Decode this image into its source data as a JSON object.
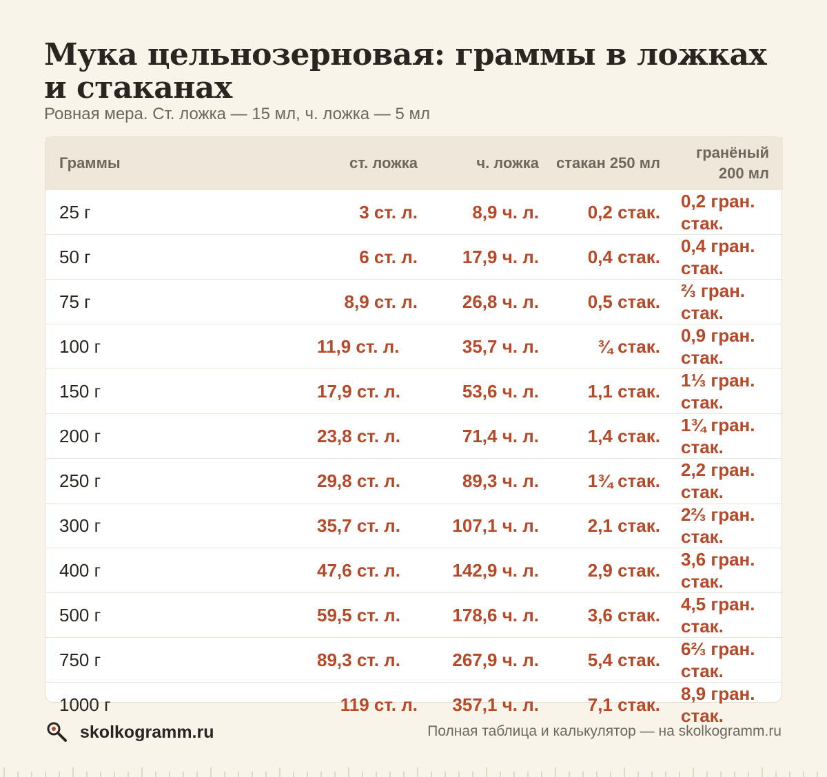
{
  "title": "Мука цельнозерновая: граммы в ложках и стаканах",
  "subtitle": "Ровная мера. Ст. ложка — 15 мл, ч. ложка — 5 мл",
  "table": {
    "headers": [
      "Граммы",
      "ст. ложка",
      "ч. ложка",
      "стакан 250 мл",
      "гранёный 200 мл"
    ],
    "rows": [
      [
        "25 г",
        "3 ст. л.",
        "8,9 ч. л.",
        "0,2 стак.",
        "0,2 гран. стак."
      ],
      [
        "50 г",
        "6 ст. л.",
        "17,9 ч. л.",
        "0,4 стак.",
        "0,4 гран. стак."
      ],
      [
        "75 г",
        "8,9 ст. л.",
        "26,8 ч. л.",
        "0,5 стак.",
        "⅔ гран. стак."
      ],
      [
        "100 г",
        "11,9 ст. л.",
        "35,7 ч. л.",
        "¾ стак.",
        "0,9 гран. стак."
      ],
      [
        "150 г",
        "17,9 ст. л.",
        "53,6 ч. л.",
        "1,1 стак.",
        "1⅓ гран. стак."
      ],
      [
        "200 г",
        "23,8 ст. л.",
        "71,4 ч. л.",
        "1,4 стак.",
        "1¾ гран. стак."
      ],
      [
        "250 г",
        "29,8 ст. л.",
        "89,3 ч. л.",
        "1¾ стак.",
        "2,2 гран. стак."
      ],
      [
        "300 г",
        "35,7 ст. л.",
        "107,1 ч. л.",
        "2,1 стак.",
        "2⅔ гран. стак."
      ],
      [
        "400 г",
        "47,6 ст. л.",
        "142,9 ч. л.",
        "2,9 стак.",
        "3,6 гран. стак."
      ],
      [
        "500 г",
        "59,5 ст. л.",
        "178,6 ч. л.",
        "3,6 стак.",
        "4,5 гран. стак."
      ],
      [
        "750 г",
        "89,3 ст. л.",
        "267,9 ч. л.",
        "5,4 стак.",
        "6⅔ гран. стак."
      ],
      [
        "1000 г",
        "119 ст. л.",
        "357,1 ч. л.",
        "7,1 стак.",
        "8,9 гран. стак."
      ]
    ]
  },
  "footer": {
    "brand": "skolkogramm.ru",
    "brand_icon": "magnifier-icon",
    "note": "Полная таблица и калькулятор — на skolkogramm.ru"
  },
  "colors": {
    "background": "#f8f4ea",
    "header_bg": "#efe8da",
    "accent": "#b44a2a",
    "text": "#2a2520",
    "muted": "#6e675d"
  }
}
